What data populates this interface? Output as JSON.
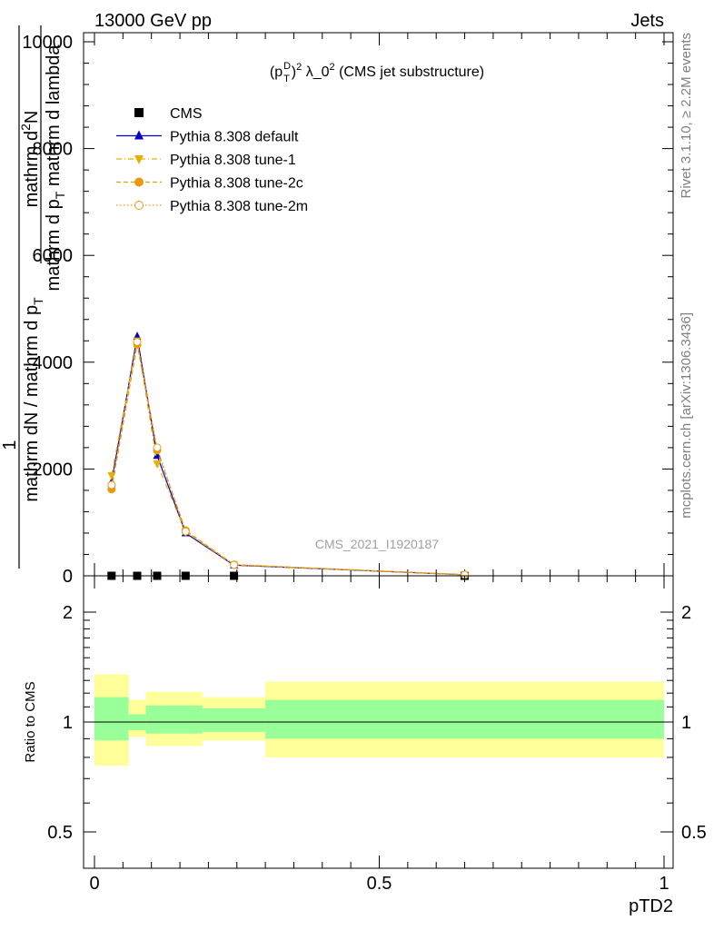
{
  "header": {
    "left": "13000 GeV pp",
    "right": "Jets"
  },
  "side_labels": {
    "rivet": "Rivet 3.1.10, ≥ 2.2M events",
    "mcplots": "mcplots.cern.ch [arXiv:1306.3436]"
  },
  "watermark": "CMS_2021_I1920187",
  "chart_data": [
    {
      "type": "line",
      "title_parts": {
        "p": "(p",
        "sup_D": "D",
        "sub_T": "T",
        "close": ")",
        "sup_2": "2",
        "rest": " λ_0",
        "sup_rest": "2",
        "tail": " (CMS jet substructure)"
      },
      "ylabel": {
        "numerator": "1",
        "denominator": "mathrm dN / mathrm d p",
        "denominator_sub": "T",
        "right_num_line1": "mathrm d",
        "right_num_sup": "2",
        "right_num_line1b": "N",
        "right_den_a": "mathrm d p",
        "right_den_sub": "T",
        "right_den_b": " mathrm d lambda"
      },
      "ylim": [
        0,
        10300
      ],
      "yticks": [
        0,
        2000,
        4000,
        6000,
        8000,
        10000
      ],
      "ytick_labels": [
        "0",
        "2000",
        "4000",
        "6000",
        "8000",
        "10000"
      ],
      "xlim": [
        -0.01,
        1.0
      ],
      "series": [
        {
          "name": "CMS",
          "color": "#000000",
          "marker": "square",
          "x": [
            0.03,
            0.075,
            0.11,
            0.16,
            0.245,
            0.65
          ],
          "y": [
            0,
            0,
            0,
            0,
            0,
            0
          ]
        },
        {
          "name": "Pythia 8.308 default",
          "color": "#0000cc",
          "marker": "triangle-up",
          "line": "solid",
          "x": [
            0.03,
            0.075,
            0.11,
            0.16,
            0.245,
            0.65
          ],
          "y": [
            1750,
            4480,
            2250,
            800,
            200,
            20
          ]
        },
        {
          "name": "Pythia 8.308 tune-1",
          "color": "#e8b000",
          "marker": "triangle-down",
          "line": "dashdot",
          "x": [
            0.03,
            0.075,
            0.11,
            0.16,
            0.245,
            0.65
          ],
          "y": [
            1880,
            4400,
            2100,
            820,
            205,
            20
          ]
        },
        {
          "name": "Pythia 8.308 tune-2c",
          "color": "#e89a10",
          "marker": "circle-filled",
          "line": "dashed",
          "x": [
            0.03,
            0.075,
            0.11,
            0.16,
            0.245,
            0.65
          ],
          "y": [
            1620,
            4330,
            2350,
            850,
            210,
            20
          ]
        },
        {
          "name": "Pythia 8.308 tune-2m",
          "color": "#e89a10",
          "marker": "circle-open",
          "line": "dotted",
          "x": [
            0.03,
            0.075,
            0.11,
            0.16,
            0.245,
            0.65
          ],
          "y": [
            1700,
            4380,
            2400,
            830,
            205,
            20
          ]
        }
      ]
    },
    {
      "type": "area",
      "ylabel": "Ratio to CMS",
      "xlabel": "pTD2",
      "ylim": [
        0.42,
        2.3
      ],
      "yticks": [
        0.5,
        1,
        2
      ],
      "ytick_labels": [
        "0.5",
        "1",
        "2"
      ],
      "xlim": [
        -0.01,
        1.0
      ],
      "xticks": [
        0,
        0.5,
        1
      ],
      "xtick_labels": [
        "0",
        "0.5",
        "1"
      ],
      "reference_line": 1,
      "bands": [
        {
          "x0": 0.0,
          "x1": 0.06,
          "yellow": [
            0.76,
            1.35
          ],
          "green": [
            0.89,
            1.17
          ]
        },
        {
          "x0": 0.06,
          "x1": 0.09,
          "yellow": [
            0.91,
            1.15
          ],
          "green": [
            0.95,
            1.05
          ]
        },
        {
          "x0": 0.09,
          "x1": 0.13,
          "yellow": [
            0.86,
            1.21
          ],
          "green": [
            0.93,
            1.11
          ]
        },
        {
          "x0": 0.13,
          "x1": 0.19,
          "yellow": [
            0.86,
            1.21
          ],
          "green": [
            0.93,
            1.11
          ]
        },
        {
          "x0": 0.19,
          "x1": 0.3,
          "yellow": [
            0.89,
            1.17
          ],
          "green": [
            0.94,
            1.09
          ]
        },
        {
          "x0": 0.3,
          "x1": 1.0,
          "yellow": [
            0.8,
            1.29
          ],
          "green": [
            0.9,
            1.15
          ]
        }
      ],
      "band_colors": {
        "yellow": "#ffff99",
        "green": "#99ff99"
      }
    }
  ]
}
